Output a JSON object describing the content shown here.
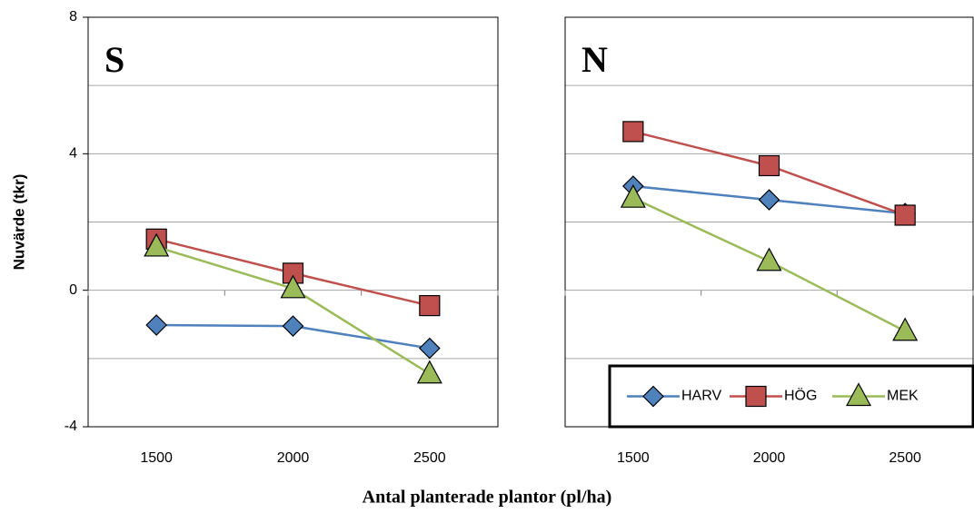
{
  "xlabel": "Antal planterade plantor (pl/ha)",
  "chart_data": [
    {
      "type": "line",
      "title": "S",
      "ylabel": "Nuvärde (tkr)",
      "categories": [
        "1500",
        "2000",
        "2500"
      ],
      "ylim": [
        -4,
        8
      ],
      "yticks": [
        -4,
        0,
        4,
        8
      ],
      "ygrid": [
        -2,
        0,
        2,
        4,
        6
      ],
      "series": [
        {
          "color": "#4f81bd",
          "marker": "diamond",
          "values": [
            -1.02,
            -1.05,
            -1.7
          ]
        },
        {
          "color": "#c0504d",
          "marker": "square",
          "values": [
            1.5,
            0.5,
            -0.45
          ]
        },
        {
          "color": "#9bbb59",
          "marker": "triangle",
          "values": [
            1.27,
            0.05,
            -2.45
          ]
        }
      ]
    },
    {
      "type": "line",
      "title": "N",
      "categories": [
        "1500",
        "2000",
        "2500"
      ],
      "ylim": [
        -4,
        8
      ],
      "ygrid": [
        -2,
        0,
        2,
        4,
        6
      ],
      "legend": "bottom-right",
      "series": [
        {
          "name": "HARV",
          "color": "#4f81bd",
          "marker": "diamond",
          "values": [
            3.05,
            2.65,
            2.25
          ]
        },
        {
          "name": "HÖG",
          "color": "#c0504d",
          "marker": "square",
          "values": [
            4.65,
            3.65,
            2.2
          ]
        },
        {
          "name": "MEK",
          "color": "#9bbb59",
          "marker": "triangle",
          "values": [
            2.7,
            0.85,
            -1.2
          ]
        }
      ]
    }
  ]
}
